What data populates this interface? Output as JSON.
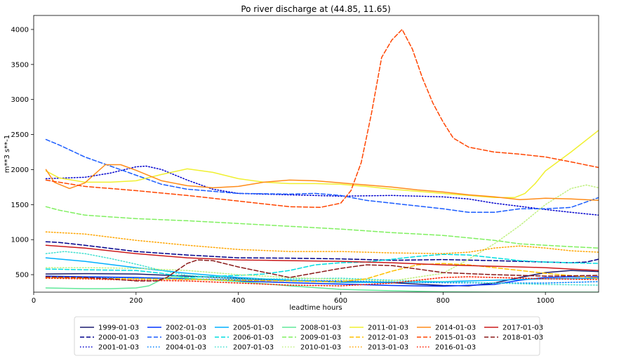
{
  "chart_data": {
    "type": "line",
    "title": "Po river discharge at (44.85, 11.65)",
    "xlabel": "leadtime hours",
    "ylabel": "m**3 s**-1",
    "xlim": [
      0,
      1104
    ],
    "ylim": [
      250,
      4200
    ],
    "xticks": [
      0,
      200,
      400,
      600,
      800,
      1000
    ],
    "yticks": [
      500,
      1000,
      1500,
      2000,
      2500,
      3000,
      3500,
      4000
    ],
    "grid": false,
    "legend_position": "bottom-center, below plot",
    "legend_columns": 7,
    "series": [
      {
        "name": "1999-01-03",
        "color": "#1a1a6e",
        "dash": "solid",
        "x": [
          24,
          100,
          200,
          300,
          400,
          500,
          600,
          700,
          800,
          850,
          900,
          950,
          1000,
          1050,
          1104
        ],
        "y": [
          510,
          515,
          510,
          480,
          445,
          415,
          400,
          385,
          345,
          340,
          380,
          460,
          530,
          560,
          545
        ]
      },
      {
        "name": "2000-01-03",
        "color": "#00008b",
        "dash": "dashed",
        "x": [
          24,
          50,
          100,
          200,
          300,
          400,
          500,
          600,
          700,
          800,
          900,
          1000,
          1050,
          1080,
          1104
        ],
        "y": [
          970,
          960,
          920,
          830,
          780,
          740,
          735,
          725,
          705,
          715,
          700,
          680,
          670,
          680,
          720
        ]
      },
      {
        "name": "2001-01-03",
        "color": "#0000cd",
        "dash": "dotted",
        "x": [
          24,
          100,
          150,
          200,
          220,
          250,
          300,
          350,
          400,
          500,
          600,
          700,
          800,
          850,
          900,
          1000,
          1050,
          1104
        ],
        "y": [
          1870,
          1890,
          1950,
          2040,
          2050,
          2000,
          1850,
          1720,
          1660,
          1640,
          1620,
          1630,
          1610,
          1580,
          1520,
          1430,
          1390,
          1350
        ]
      },
      {
        "name": "2002-01-03",
        "color": "#0033ff",
        "dash": "solid",
        "x": [
          24,
          100,
          200,
          300,
          400,
          500,
          600,
          700,
          800,
          900,
          950,
          1000,
          1050,
          1104
        ],
        "y": [
          480,
          470,
          460,
          440,
          410,
          385,
          365,
          345,
          335,
          360,
          420,
          460,
          470,
          470
        ]
      },
      {
        "name": "2003-01-03",
        "color": "#1a5cff",
        "dash": "dashed",
        "x": [
          24,
          50,
          100,
          150,
          200,
          250,
          300,
          400,
          500,
          550,
          600,
          650,
          700,
          750,
          800,
          850,
          900,
          950,
          1000,
          1050,
          1104
        ],
        "y": [
          2430,
          2350,
          2180,
          2050,
          1920,
          1790,
          1720,
          1660,
          1650,
          1660,
          1630,
          1560,
          1520,
          1480,
          1440,
          1390,
          1390,
          1440,
          1440,
          1460,
          1600
        ]
      },
      {
        "name": "2004-01-03",
        "color": "#0080ff",
        "dash": "dotted",
        "x": [
          24,
          100,
          200,
          300,
          400,
          500,
          600,
          700,
          800,
          900,
          1000,
          1104
        ],
        "y": [
          460,
          455,
          450,
          440,
          430,
          420,
          410,
          395,
          385,
          380,
          380,
          400
        ]
      },
      {
        "name": "2005-01-03",
        "color": "#00b0ff",
        "dash": "solid",
        "x": [
          24,
          100,
          200,
          300,
          400,
          500,
          600,
          700,
          800,
          900,
          1000,
          1104
        ],
        "y": [
          740,
          690,
          600,
          520,
          460,
          420,
          390,
          390,
          400,
          420,
          440,
          450
        ]
      },
      {
        "name": "2006-01-03",
        "color": "#00dde0",
        "dash": "dashed",
        "x": [
          24,
          100,
          200,
          250,
          300,
          400,
          450,
          500,
          550,
          600,
          650,
          700,
          750,
          800,
          850,
          900,
          950,
          1000,
          1050,
          1104
        ],
        "y": [
          580,
          570,
          560,
          520,
          460,
          490,
          510,
          560,
          640,
          670,
          680,
          720,
          760,
          790,
          780,
          740,
          700,
          680,
          670,
          660
        ]
      },
      {
        "name": "2007-01-03",
        "color": "#40e0d0",
        "dash": "dotted",
        "x": [
          24,
          60,
          100,
          150,
          200,
          250,
          300,
          400,
          500,
          600,
          700,
          800,
          900,
          1000,
          1104
        ],
        "y": [
          800,
          830,
          800,
          730,
          650,
          560,
          490,
          440,
          440,
          450,
          420,
          400,
          380,
          360,
          350
        ]
      },
      {
        "name": "2008-01-03",
        "color": "#60e89a",
        "dash": "solid",
        "x": [
          24,
          100,
          150,
          200,
          225,
          250,
          270,
          300,
          400,
          500,
          600,
          700,
          800,
          900,
          1000,
          1104
        ],
        "y": [
          310,
          300,
          300,
          310,
          340,
          430,
          470,
          450,
          400,
          340,
          290,
          270,
          255,
          250,
          250,
          250
        ]
      },
      {
        "name": "2009-01-03",
        "color": "#80f060",
        "dash": "dashed",
        "x": [
          24,
          50,
          100,
          200,
          300,
          400,
          500,
          600,
          700,
          800,
          900,
          950,
          1000,
          1050,
          1104
        ],
        "y": [
          1470,
          1420,
          1350,
          1300,
          1270,
          1230,
          1190,
          1150,
          1100,
          1060,
          990,
          940,
          920,
          900,
          880
        ]
      },
      {
        "name": "2010-01-03",
        "color": "#c0f080",
        "dash": "dotted",
        "x": [
          24,
          100,
          200,
          300,
          400,
          500,
          600,
          700,
          800,
          850,
          900,
          950,
          1000,
          1050,
          1080,
          1104
        ],
        "y": [
          600,
          600,
          590,
          560,
          500,
          460,
          430,
          410,
          520,
          720,
          940,
          1200,
          1500,
          1730,
          1780,
          1740
        ]
      },
      {
        "name": "2011-01-03",
        "color": "#f0f030",
        "dash": "solid",
        "x": [
          24,
          50,
          100,
          150,
          200,
          250,
          300,
          350,
          400,
          450,
          500,
          550,
          600,
          650,
          700,
          750,
          800,
          850,
          900,
          940,
          960,
          980,
          1000,
          1050,
          1104
        ],
        "y": [
          1980,
          1880,
          1820,
          1820,
          1840,
          1930,
          2010,
          1960,
          1870,
          1820,
          1800,
          1800,
          1790,
          1760,
          1720,
          1690,
          1660,
          1630,
          1600,
          1600,
          1660,
          1800,
          1980,
          2250,
          2560
        ]
      },
      {
        "name": "2012-01-03",
        "color": "#ffc000",
        "dash": "dashed",
        "x": [
          24,
          100,
          200,
          300,
          400,
          500,
          550,
          600,
          650,
          700,
          750,
          800,
          850,
          900,
          1000,
          1104
        ],
        "y": [
          460,
          450,
          440,
          430,
          420,
          410,
          400,
          400,
          440,
          550,
          640,
          660,
          640,
          600,
          520,
          450
        ]
      },
      {
        "name": "2013-01-03",
        "color": "#ffa500",
        "dash": "dotted",
        "x": [
          24,
          100,
          200,
          300,
          400,
          500,
          600,
          700,
          800,
          850,
          900,
          950,
          1000,
          1050,
          1104
        ],
        "y": [
          1110,
          1080,
          990,
          920,
          860,
          830,
          830,
          810,
          800,
          820,
          880,
          910,
          880,
          840,
          820
        ]
      },
      {
        "name": "2014-01-03",
        "color": "#ff8c1a",
        "dash": "solid",
        "x": [
          24,
          40,
          70,
          100,
          120,
          140,
          170,
          200,
          250,
          300,
          350,
          400,
          450,
          500,
          550,
          600,
          650,
          700,
          750,
          800,
          850,
          900,
          950,
          1000,
          1050,
          1104
        ],
        "y": [
          2000,
          1820,
          1730,
          1810,
          1940,
          2070,
          2070,
          1990,
          1840,
          1770,
          1740,
          1760,
          1820,
          1850,
          1840,
          1810,
          1780,
          1750,
          1710,
          1680,
          1640,
          1610,
          1570,
          1590,
          1580,
          1560
        ]
      },
      {
        "name": "2015-01-03",
        "color": "#ff4500",
        "dash": "dashed",
        "x": [
          24,
          100,
          200,
          300,
          400,
          500,
          560,
          600,
          620,
          640,
          660,
          680,
          700,
          720,
          740,
          760,
          780,
          800,
          820,
          850,
          900,
          950,
          1000,
          1050,
          1104
        ],
        "y": [
          1850,
          1760,
          1700,
          1630,
          1550,
          1470,
          1460,
          1520,
          1700,
          2100,
          2800,
          3600,
          3850,
          4000,
          3720,
          3300,
          2950,
          2680,
          2450,
          2320,
          2250,
          2220,
          2180,
          2110,
          2030
        ]
      },
      {
        "name": "2016-01-03",
        "color": "#ff2000",
        "dash": "dotted",
        "x": [
          24,
          100,
          200,
          300,
          400,
          500,
          600,
          700,
          750,
          800,
          850,
          900,
          1000,
          1104
        ],
        "y": [
          450,
          440,
          420,
          410,
          380,
          350,
          340,
          380,
          420,
          460,
          470,
          460,
          440,
          430
        ]
      },
      {
        "name": "2017-01-03",
        "color": "#cc1a1a",
        "dash": "solid",
        "x": [
          24,
          100,
          200,
          300,
          400,
          500,
          600,
          700,
          800,
          900,
          1000,
          1050,
          1104
        ],
        "y": [
          920,
          880,
          800,
          740,
          710,
          700,
          690,
          670,
          640,
          620,
          600,
          580,
          560
        ]
      },
      {
        "name": "2018-01-03",
        "color": "#8b1a1a",
        "dash": "dashed",
        "x": [
          24,
          100,
          150,
          200,
          240,
          260,
          280,
          300,
          320,
          350,
          400,
          500,
          600,
          650,
          700,
          750,
          800,
          900,
          1000,
          1104
        ],
        "y": [
          470,
          460,
          440,
          410,
          410,
          460,
          560,
          660,
          710,
          700,
          610,
          460,
          590,
          640,
          630,
          580,
          530,
          500,
          480,
          490
        ]
      }
    ]
  }
}
